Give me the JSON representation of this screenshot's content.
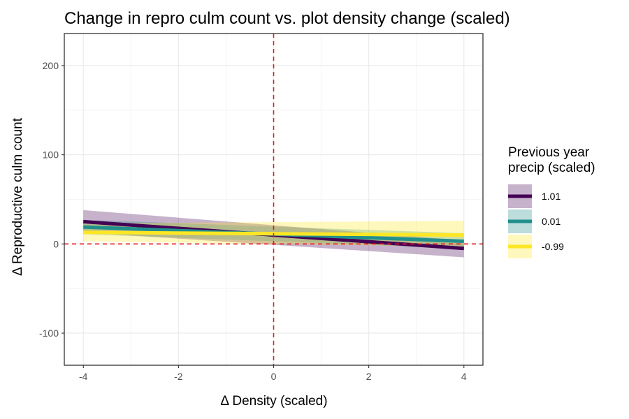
{
  "chart_data": {
    "type": "line",
    "title": "Change in repro culm count vs. plot density change (scaled)",
    "xlabel": "Δ Density (scaled)",
    "ylabel": "Δ Reproductive culm count",
    "xlim": [
      -4.4,
      4.4
    ],
    "ylim": [
      -136,
      236
    ],
    "x_ticks": [
      -4,
      -2,
      0,
      2,
      4
    ],
    "x_tick_labels": [
      "-4",
      "-2",
      "0",
      "2",
      "4"
    ],
    "y_ticks": [
      -100,
      0,
      100,
      200
    ],
    "y_tick_labels": [
      "-100",
      "0",
      "100",
      "200"
    ],
    "grid": true,
    "reference_lines": {
      "x": 0,
      "y": 0,
      "color": "#e41a1c",
      "style": "dashed"
    },
    "legend": {
      "title": [
        "Previous year",
        "precip (scaled)"
      ],
      "placement": "right"
    },
    "series": [
      {
        "name": "1.01",
        "color": "#440154",
        "x": [
          -4,
          4
        ],
        "y": [
          25,
          -5
        ],
        "lower": [
          13,
          -15
        ],
        "upper": [
          38,
          4
        ]
      },
      {
        "name": "0.01",
        "color": "#21908c",
        "x": [
          -4,
          4
        ],
        "y": [
          19,
          3
        ],
        "lower": [
          11,
          -5
        ],
        "upper": [
          27,
          12
        ]
      },
      {
        "name": "-0.99",
        "color": "#fde725",
        "x": [
          -4,
          4
        ],
        "y": [
          13,
          10
        ],
        "lower": [
          3,
          -3
        ],
        "upper": [
          23,
          26
        ]
      }
    ]
  }
}
